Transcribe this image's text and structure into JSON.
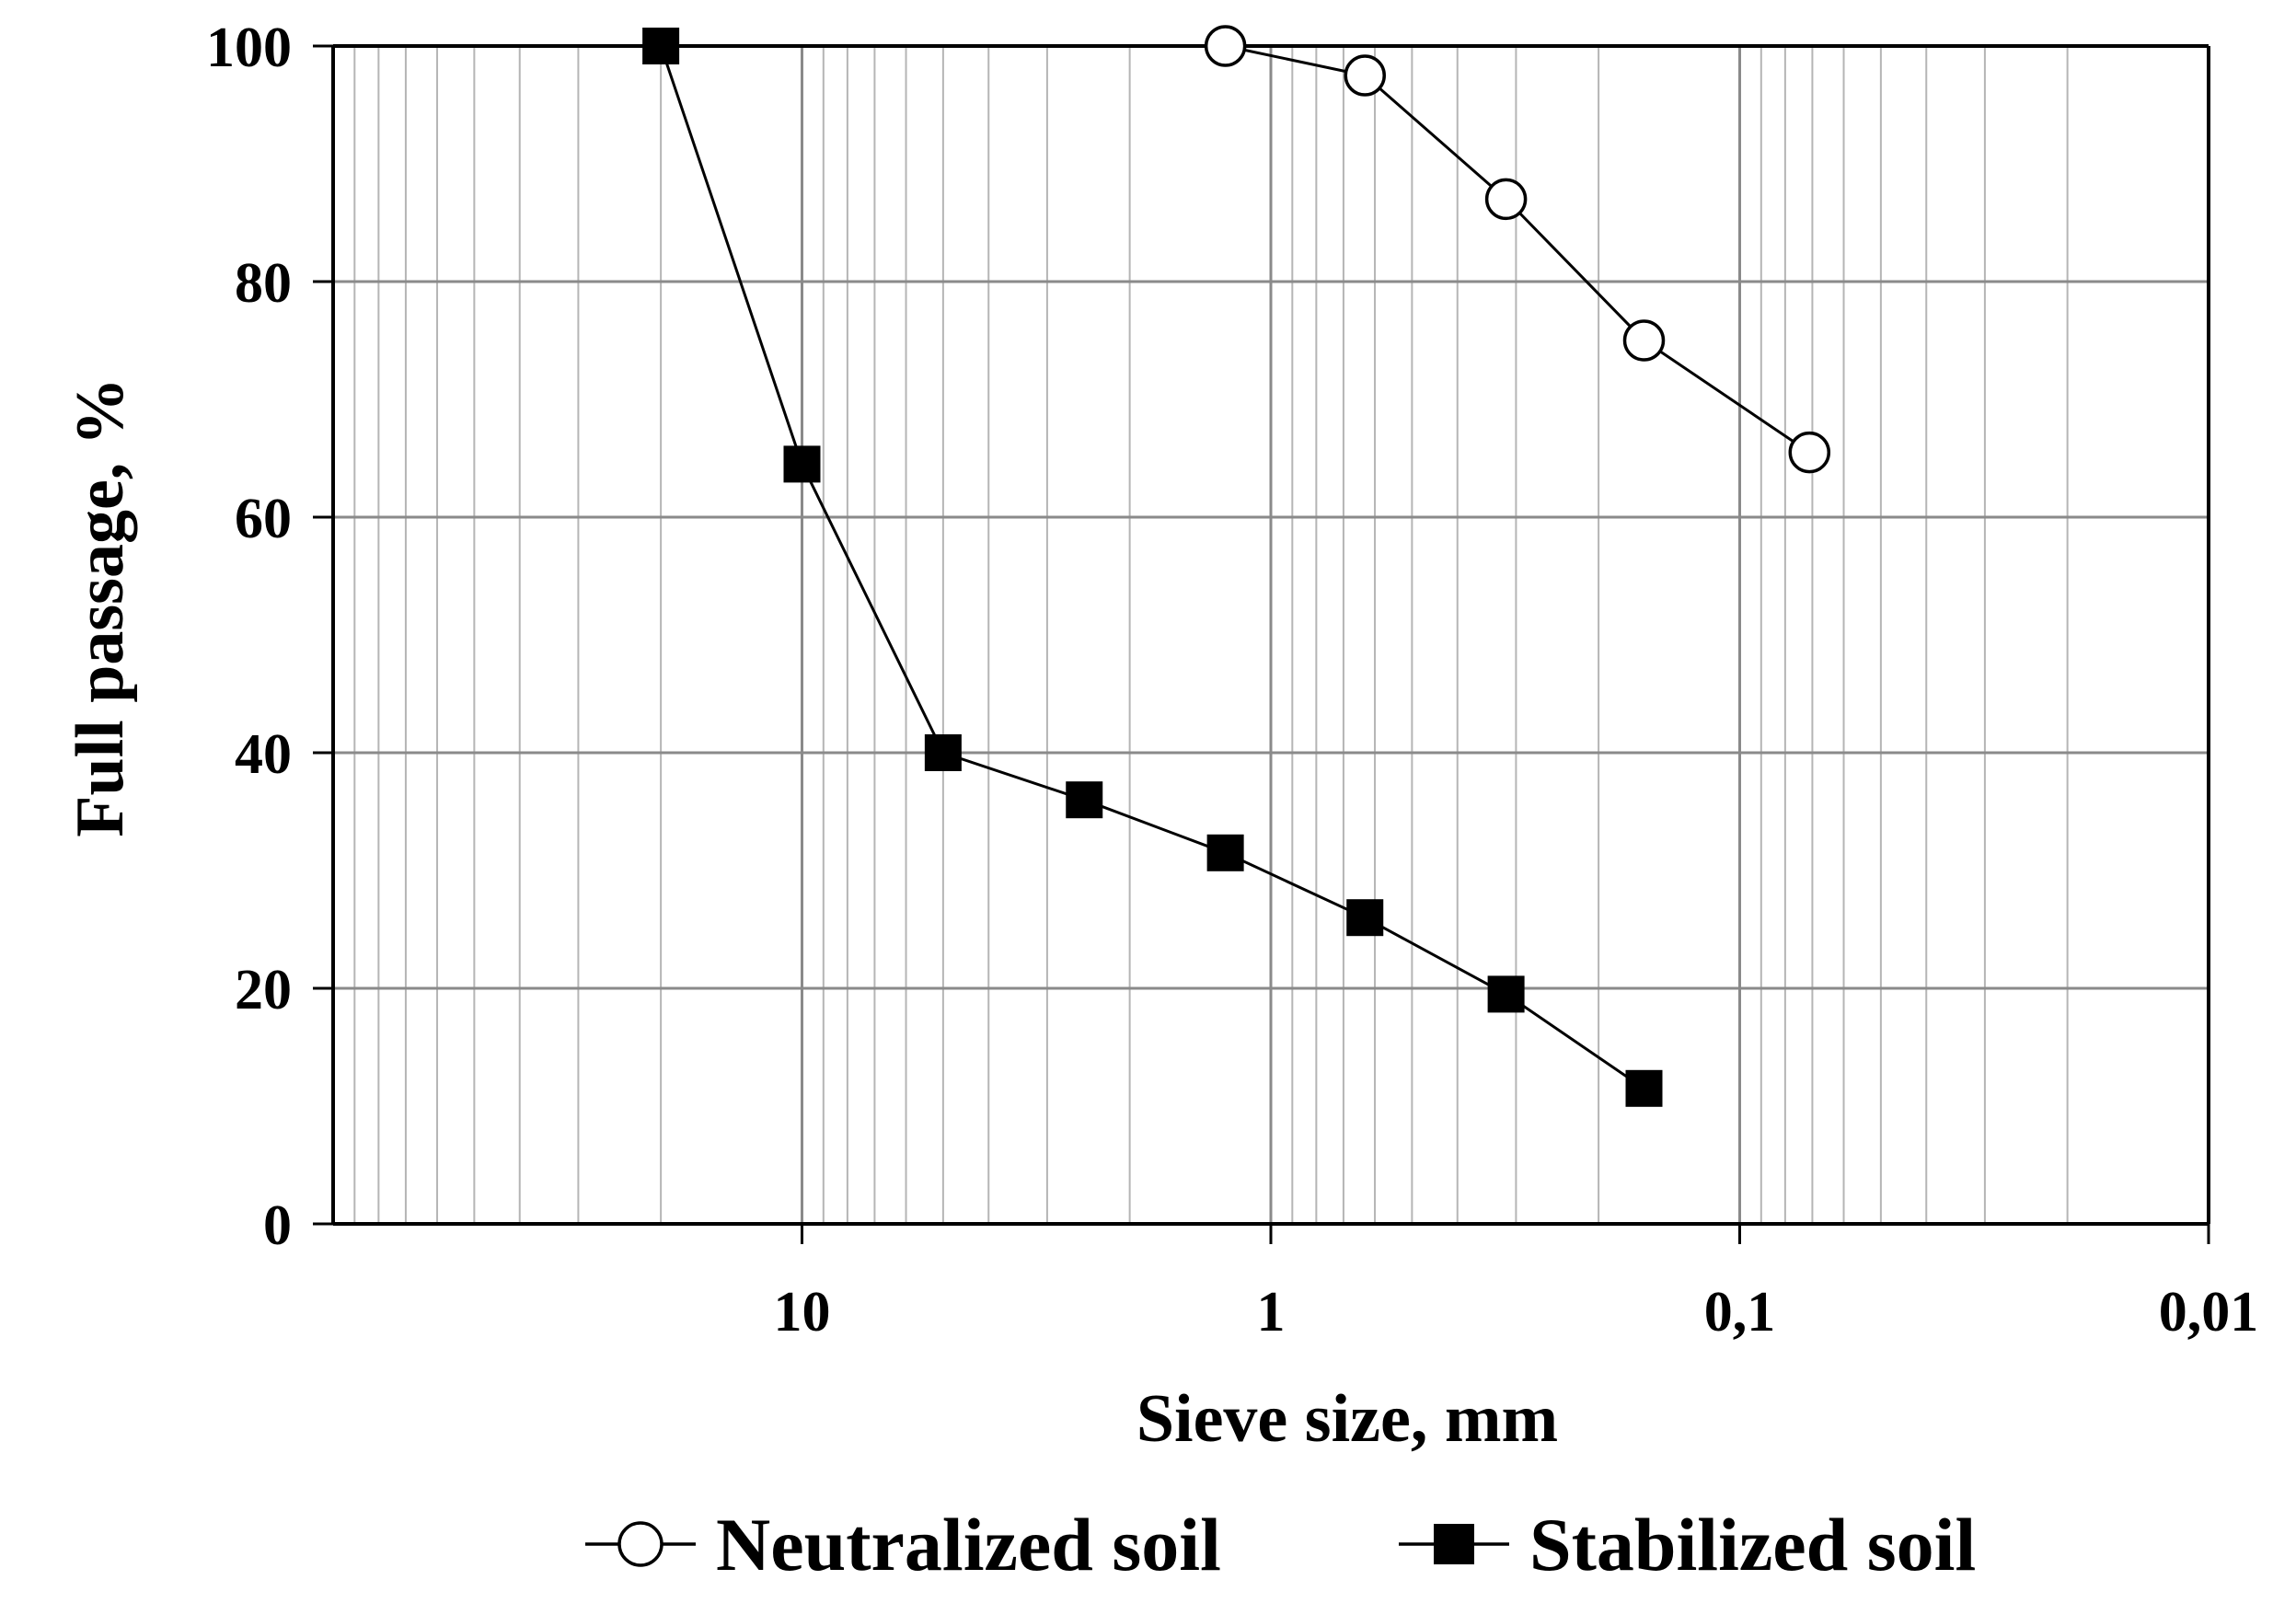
{
  "chart_data": {
    "type": "scatter",
    "title": "",
    "xlabel": "Sieve size, mm",
    "ylabel": "Full passage, %",
    "x_scale": "log",
    "x_reversed": true,
    "xlim": [
      100,
      0.01
    ],
    "ylim": [
      0,
      100
    ],
    "x_ticks": [
      10,
      1,
      0.1,
      0.01
    ],
    "x_tick_labels": [
      "10",
      "1",
      "0,1",
      "0,01"
    ],
    "y_ticks": [
      0,
      20,
      40,
      60,
      80,
      100
    ],
    "y_tick_labels": [
      "0",
      "20",
      "40",
      "60",
      "80",
      "100"
    ],
    "grid": "major and minor (log) gridlines",
    "legend_position": "bottom",
    "series": [
      {
        "name": "Neutralized soil",
        "marker": "open-circle",
        "color": "#000000",
        "x": [
          1.25,
          0.63,
          0.315,
          0.16,
          0.071
        ],
        "y": [
          100,
          97.5,
          87,
          75,
          65.5
        ]
      },
      {
        "name": "Stabilized soil",
        "marker": "filled-square",
        "color": "#000000",
        "x": [
          20,
          10,
          5,
          2.5,
          1.25,
          0.63,
          0.315,
          0.16
        ],
        "y": [
          100,
          64.5,
          40,
          36,
          31.5,
          26,
          19.5,
          11.5
        ]
      }
    ]
  }
}
